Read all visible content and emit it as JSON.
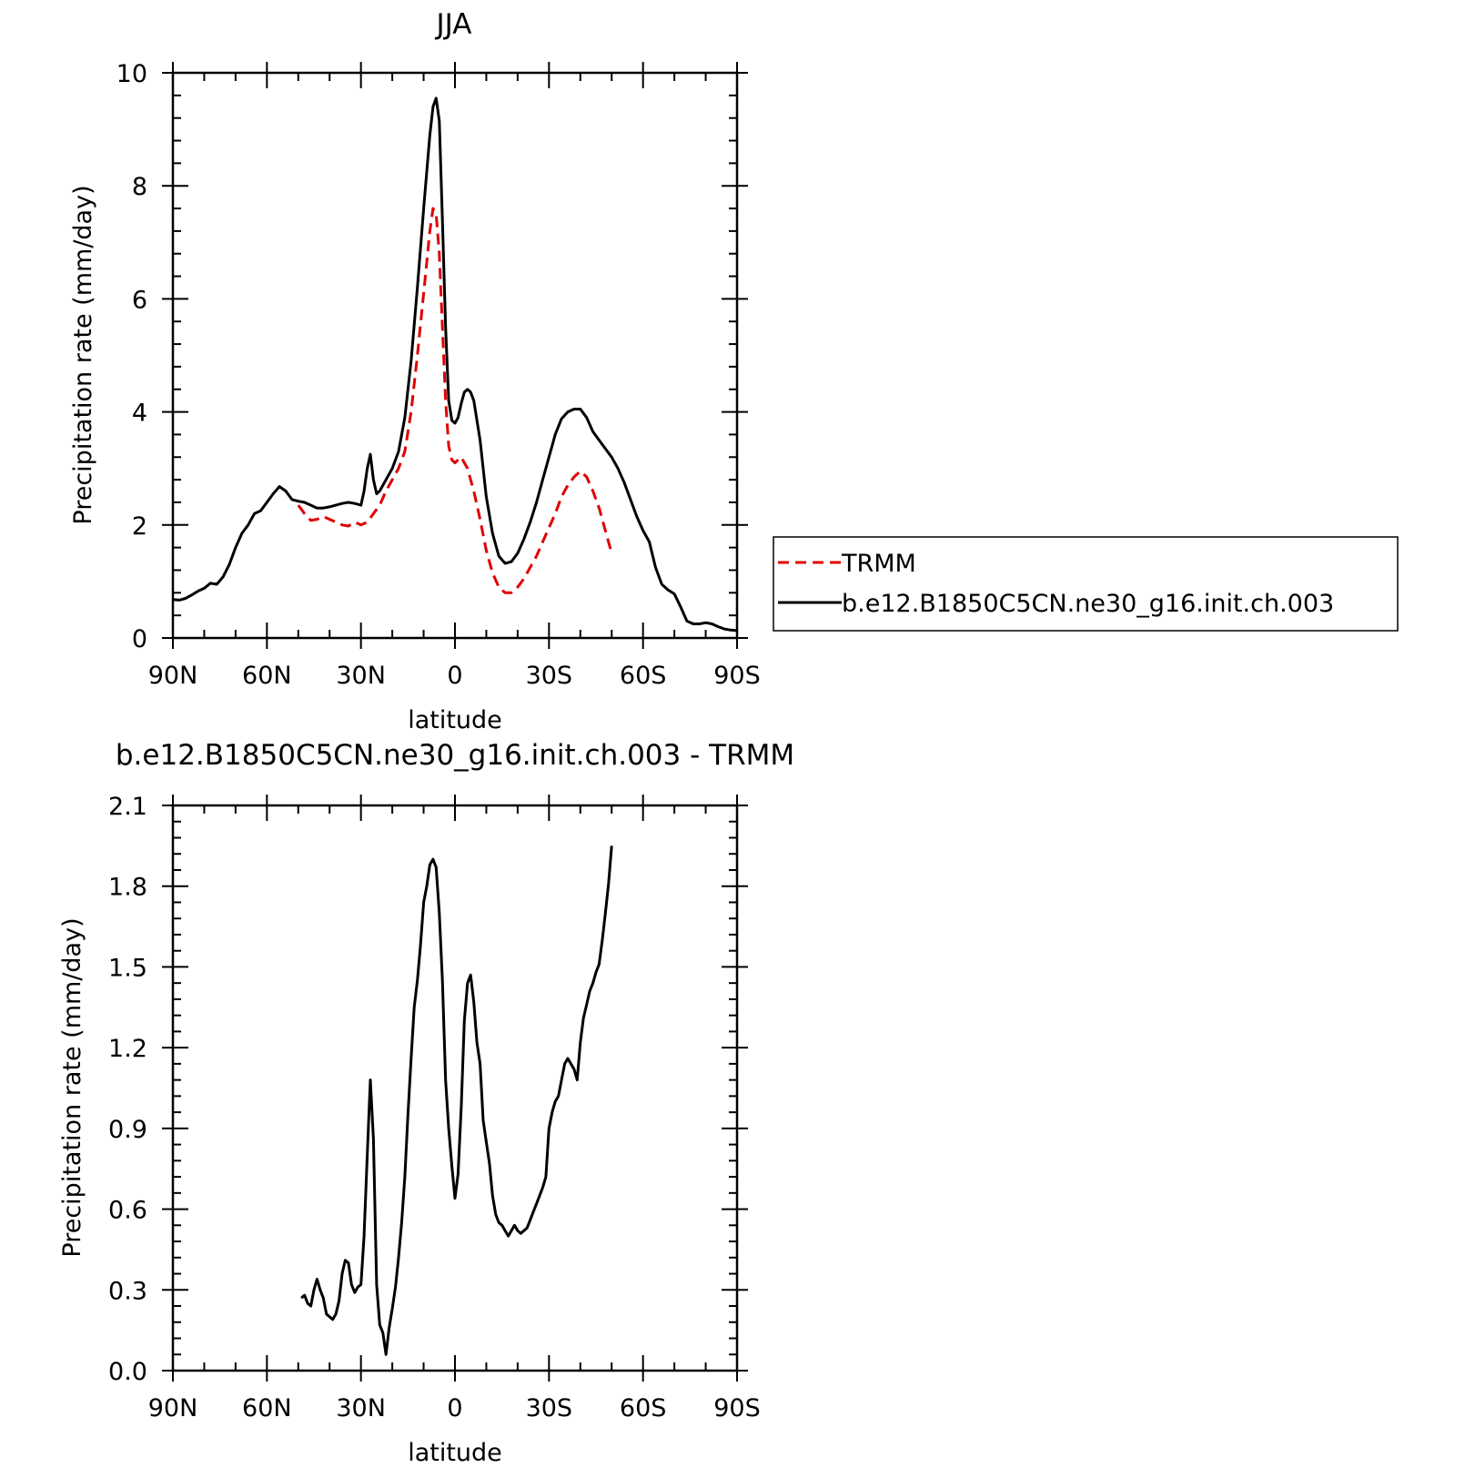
{
  "chart_data": [
    {
      "type": "line",
      "title": "JJA",
      "xlabel": "latitude",
      "ylabel": "Precipitation rate (mm/day)",
      "xlim": [
        90,
        -90
      ],
      "ylim": [
        0,
        10
      ],
      "x_ticks": [
        90,
        60,
        30,
        0,
        -30,
        -60,
        -90
      ],
      "x_tick_labels": [
        "90N",
        "60N",
        "30N",
        "0",
        "30S",
        "60S",
        "90S"
      ],
      "y_ticks": [
        0,
        2,
        4,
        6,
        8,
        10
      ],
      "y_tick_labels": [
        "0",
        "2",
        "4",
        "6",
        "8",
        "10"
      ],
      "legend_position": "right-outside",
      "series": [
        {
          "name": "TRMM",
          "color": "#e00000",
          "dash": "dashed",
          "x": [
            50,
            48,
            46,
            44,
            42,
            40,
            38,
            36,
            34,
            32,
            30,
            28,
            26,
            24,
            22,
            20,
            18,
            16,
            14,
            12,
            10,
            8,
            7,
            6,
            5,
            4,
            3,
            2,
            1,
            0,
            -1,
            -2,
            -3,
            -4,
            -5,
            -6,
            -8,
            -10,
            -12,
            -14,
            -16,
            -18,
            -20,
            -22,
            -24,
            -26,
            -28,
            -30,
            -32,
            -34,
            -36,
            -38,
            -40,
            -42,
            -44,
            -46,
            -48,
            -50
          ],
          "y": [
            2.35,
            2.2,
            2.08,
            2.1,
            2.15,
            2.1,
            2.05,
            2.0,
            1.98,
            2.05,
            2.0,
            2.05,
            2.2,
            2.35,
            2.6,
            2.8,
            3.0,
            3.3,
            4.0,
            5.0,
            6.1,
            7.2,
            7.6,
            7.5,
            6.8,
            5.5,
            4.2,
            3.4,
            3.15,
            3.1,
            3.15,
            3.2,
            3.1,
            3.0,
            2.8,
            2.6,
            2.1,
            1.55,
            1.15,
            0.9,
            0.8,
            0.8,
            0.9,
            1.05,
            1.25,
            1.45,
            1.7,
            1.95,
            2.2,
            2.5,
            2.7,
            2.85,
            2.95,
            2.85,
            2.6,
            2.3,
            1.9,
            1.5
          ]
        },
        {
          "name": "b.e12.B1850C5CN.ne30_g16.init.ch.003",
          "color": "#000000",
          "dash": "solid",
          "x": [
            90,
            88,
            86,
            84,
            82,
            80,
            78,
            76,
            74,
            72,
            70,
            68,
            66,
            64,
            62,
            60,
            58,
            56,
            54,
            52,
            50,
            48,
            46,
            44,
            42,
            40,
            38,
            36,
            34,
            32,
            30,
            29,
            28,
            27,
            26,
            25,
            24,
            22,
            20,
            18,
            16,
            14,
            12,
            10,
            8,
            7,
            6,
            5,
            4,
            3,
            2,
            1,
            0,
            -1,
            -2,
            -3,
            -4,
            -5,
            -6,
            -8,
            -10,
            -12,
            -14,
            -16,
            -18,
            -20,
            -22,
            -24,
            -26,
            -28,
            -30,
            -32,
            -34,
            -36,
            -38,
            -40,
            -42,
            -44,
            -46,
            -48,
            -50,
            -52,
            -54,
            -56,
            -58,
            -60,
            -62,
            -64,
            -66,
            -68,
            -70,
            -72,
            -74,
            -76,
            -78,
            -80,
            -82,
            -84,
            -86,
            -88,
            -90
          ],
          "y": [
            0.68,
            0.67,
            0.7,
            0.76,
            0.83,
            0.88,
            0.97,
            0.95,
            1.08,
            1.3,
            1.6,
            1.85,
            2.0,
            2.2,
            2.25,
            2.4,
            2.55,
            2.68,
            2.6,
            2.45,
            2.42,
            2.4,
            2.35,
            2.3,
            2.3,
            2.32,
            2.35,
            2.38,
            2.4,
            2.38,
            2.35,
            2.6,
            3.0,
            3.25,
            2.8,
            2.55,
            2.6,
            2.8,
            3.0,
            3.3,
            3.9,
            4.9,
            6.2,
            7.6,
            8.9,
            9.4,
            9.55,
            9.15,
            7.4,
            5.5,
            4.2,
            3.85,
            3.8,
            3.9,
            4.15,
            4.35,
            4.4,
            4.35,
            4.2,
            3.5,
            2.5,
            1.85,
            1.45,
            1.32,
            1.35,
            1.5,
            1.75,
            2.05,
            2.4,
            2.8,
            3.2,
            3.6,
            3.88,
            4.0,
            4.05,
            4.05,
            3.9,
            3.65,
            3.5,
            3.35,
            3.2,
            3.0,
            2.75,
            2.45,
            2.15,
            1.9,
            1.7,
            1.25,
            0.95,
            0.85,
            0.78,
            0.55,
            0.3,
            0.25,
            0.25,
            0.27,
            0.25,
            0.2,
            0.16,
            0.14,
            0.13
          ]
        }
      ]
    },
    {
      "type": "line",
      "title": "b.e12.B1850C5CN.ne30_g16.init.ch.003 - TRMM",
      "xlabel": "latitude",
      "ylabel": "Precipitation rate (mm/day)",
      "xlim": [
        90,
        -90
      ],
      "ylim": [
        0.0,
        2.1
      ],
      "x_ticks": [
        90,
        60,
        30,
        0,
        -30,
        -60,
        -90
      ],
      "x_tick_labels": [
        "90N",
        "60N",
        "30N",
        "0",
        "30S",
        "60S",
        "90S"
      ],
      "y_ticks": [
        0.0,
        0.3,
        0.6,
        0.9,
        1.2,
        1.5,
        1.8,
        2.1
      ],
      "y_tick_labels": [
        "0.0",
        "0.3",
        "0.6",
        "0.9",
        "1.2",
        "1.5",
        "1.8",
        "2.1"
      ],
      "series": [
        {
          "color": "#000000",
          "dash": "solid",
          "x": [
            49,
            48,
            47,
            46,
            45,
            44,
            43,
            42,
            41,
            40,
            39,
            38,
            37,
            36,
            35,
            34,
            33,
            32,
            31,
            30,
            29,
            28,
            27,
            26,
            25,
            24,
            23,
            22,
            21,
            20,
            19,
            18,
            17,
            16,
            15,
            14,
            13,
            12,
            11,
            10,
            9,
            8,
            7,
            6,
            5,
            4,
            3,
            2,
            1,
            0,
            -1,
            -2,
            -3,
            -4,
            -5,
            -6,
            -7,
            -8,
            -9,
            -10,
            -11,
            -12,
            -13,
            -14,
            -15,
            -16,
            -17,
            -18,
            -19,
            -20,
            -21,
            -22,
            -23,
            -24,
            -25,
            -26,
            -27,
            -28,
            -29,
            -30,
            -31,
            -32,
            -33,
            -34,
            -35,
            -36,
            -37,
            -38,
            -39,
            -40,
            -41,
            -42,
            -43,
            -44,
            -45,
            -46,
            -47,
            -48,
            -49,
            -50
          ],
          "y": [
            0.27,
            0.28,
            0.25,
            0.24,
            0.3,
            0.34,
            0.3,
            0.27,
            0.21,
            0.2,
            0.19,
            0.21,
            0.26,
            0.36,
            0.41,
            0.4,
            0.32,
            0.29,
            0.31,
            0.32,
            0.5,
            0.8,
            1.08,
            0.86,
            0.32,
            0.17,
            0.14,
            0.06,
            0.16,
            0.23,
            0.31,
            0.42,
            0.55,
            0.72,
            0.95,
            1.16,
            1.35,
            1.45,
            1.58,
            1.74,
            1.8,
            1.88,
            1.9,
            1.87,
            1.7,
            1.45,
            1.08,
            0.9,
            0.76,
            0.64,
            0.73,
            0.98,
            1.3,
            1.44,
            1.47,
            1.37,
            1.22,
            1.14,
            0.93,
            0.85,
            0.77,
            0.65,
            0.58,
            0.55,
            0.54,
            0.52,
            0.5,
            0.52,
            0.54,
            0.52,
            0.51,
            0.52,
            0.53,
            0.56,
            0.59,
            0.62,
            0.65,
            0.68,
            0.72,
            0.9,
            0.96,
            1.0,
            1.02,
            1.08,
            1.14,
            1.16,
            1.14,
            1.12,
            1.08,
            1.22,
            1.31,
            1.36,
            1.41,
            1.44,
            1.48,
            1.51,
            1.6,
            1.7,
            1.81,
            1.95
          ]
        }
      ]
    }
  ]
}
